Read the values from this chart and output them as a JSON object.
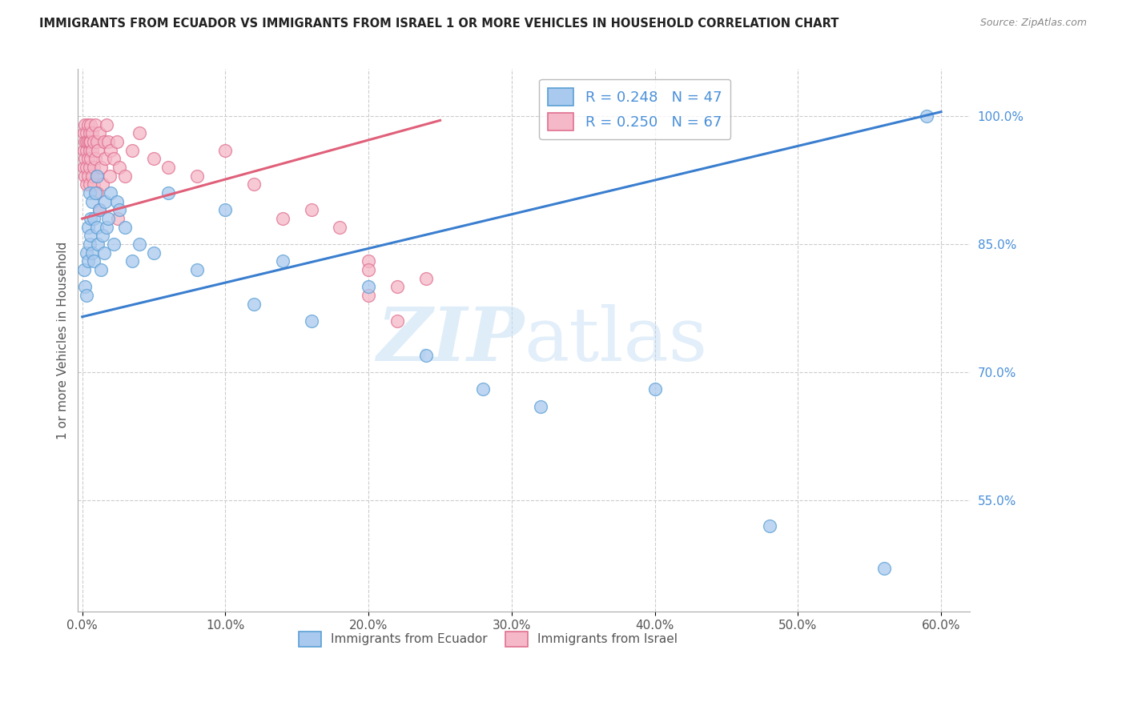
{
  "title": "IMMIGRANTS FROM ECUADOR VS IMMIGRANTS FROM ISRAEL 1 OR MORE VEHICLES IN HOUSEHOLD CORRELATION CHART",
  "source": "Source: ZipAtlas.com",
  "ylabel": "1 or more Vehicles in Household",
  "legend_label_blue": "Immigrants from Ecuador",
  "legend_label_pink": "Immigrants from Israel",
  "legend_r_blue": "R = 0.248",
  "legend_n_blue": "N = 47",
  "legend_r_pink": "R = 0.250",
  "legend_n_pink": "N = 67",
  "xlim": [
    -0.003,
    0.62
  ],
  "ylim": [
    0.42,
    1.055
  ],
  "xtick_labels": [
    "0.0%",
    "10.0%",
    "20.0%",
    "30.0%",
    "40.0%",
    "50.0%",
    "60.0%"
  ],
  "xtick_vals": [
    0.0,
    0.1,
    0.2,
    0.3,
    0.4,
    0.5,
    0.6
  ],
  "ytick_labels_right": [
    "55.0%",
    "70.0%",
    "85.0%",
    "100.0%"
  ],
  "ytick_vals_right": [
    0.55,
    0.7,
    0.85,
    1.0
  ],
  "grid_color": "#cccccc",
  "background_color": "#ffffff",
  "blue_fill": "#aac9ee",
  "blue_edge": "#5a9fd4",
  "pink_fill": "#f5b8c8",
  "pink_edge": "#e07090",
  "blue_line_color": "#3a7ecf",
  "pink_line_color": "#e0607a",
  "watermark": "ZIPatlas",
  "ecuador_x": [
    0.001,
    0.002,
    0.003,
    0.003,
    0.004,
    0.004,
    0.005,
    0.005,
    0.006,
    0.006,
    0.007,
    0.007,
    0.008,
    0.008,
    0.009,
    0.01,
    0.01,
    0.011,
    0.012,
    0.013,
    0.014,
    0.015,
    0.016,
    0.017,
    0.018,
    0.02,
    0.022,
    0.024,
    0.026,
    0.03,
    0.035,
    0.04,
    0.05,
    0.06,
    0.08,
    0.1,
    0.12,
    0.14,
    0.16,
    0.2,
    0.24,
    0.28,
    0.32,
    0.4,
    0.48,
    0.56,
    0.59
  ],
  "ecuador_y": [
    0.82,
    0.8,
    0.84,
    0.79,
    0.83,
    0.87,
    0.85,
    0.91,
    0.88,
    0.86,
    0.84,
    0.9,
    0.88,
    0.83,
    0.91,
    0.87,
    0.93,
    0.85,
    0.89,
    0.82,
    0.86,
    0.84,
    0.9,
    0.87,
    0.88,
    0.91,
    0.85,
    0.9,
    0.89,
    0.87,
    0.83,
    0.85,
    0.84,
    0.91,
    0.82,
    0.89,
    0.78,
    0.83,
    0.76,
    0.8,
    0.72,
    0.68,
    0.66,
    0.68,
    0.52,
    0.47,
    1.0
  ],
  "israel_x": [
    0.001,
    0.001,
    0.001,
    0.002,
    0.002,
    0.002,
    0.002,
    0.003,
    0.003,
    0.003,
    0.003,
    0.003,
    0.004,
    0.004,
    0.004,
    0.004,
    0.005,
    0.005,
    0.005,
    0.005,
    0.005,
    0.006,
    0.006,
    0.006,
    0.007,
    0.007,
    0.007,
    0.008,
    0.008,
    0.008,
    0.009,
    0.009,
    0.01,
    0.01,
    0.011,
    0.012,
    0.013,
    0.014,
    0.015,
    0.016,
    0.017,
    0.018,
    0.019,
    0.02,
    0.022,
    0.024,
    0.026,
    0.03,
    0.035,
    0.04,
    0.05,
    0.06,
    0.08,
    0.1,
    0.12,
    0.14,
    0.16,
    0.18,
    0.2,
    0.22,
    0.01,
    0.012,
    0.025,
    0.2,
    0.22,
    0.24,
    0.2
  ],
  "israel_y": [
    0.96,
    0.98,
    0.94,
    0.97,
    0.95,
    0.99,
    0.93,
    0.96,
    0.98,
    0.94,
    0.92,
    0.97,
    0.95,
    0.99,
    0.97,
    0.93,
    0.96,
    0.98,
    0.94,
    0.92,
    0.97,
    0.95,
    0.99,
    0.97,
    0.93,
    0.96,
    0.98,
    0.94,
    0.92,
    0.97,
    0.95,
    0.99,
    0.97,
    0.93,
    0.96,
    0.98,
    0.94,
    0.92,
    0.97,
    0.95,
    0.99,
    0.97,
    0.93,
    0.96,
    0.95,
    0.97,
    0.94,
    0.93,
    0.96,
    0.98,
    0.95,
    0.94,
    0.93,
    0.96,
    0.92,
    0.88,
    0.89,
    0.87,
    0.83,
    0.8,
    0.91,
    0.89,
    0.88,
    0.79,
    0.76,
    0.81,
    0.82
  ],
  "blue_trend_x": [
    0.0,
    0.6
  ],
  "blue_trend_y": [
    0.765,
    1.005
  ],
  "pink_trend_x": [
    0.0,
    0.25
  ],
  "pink_trend_y": [
    0.88,
    0.995
  ]
}
